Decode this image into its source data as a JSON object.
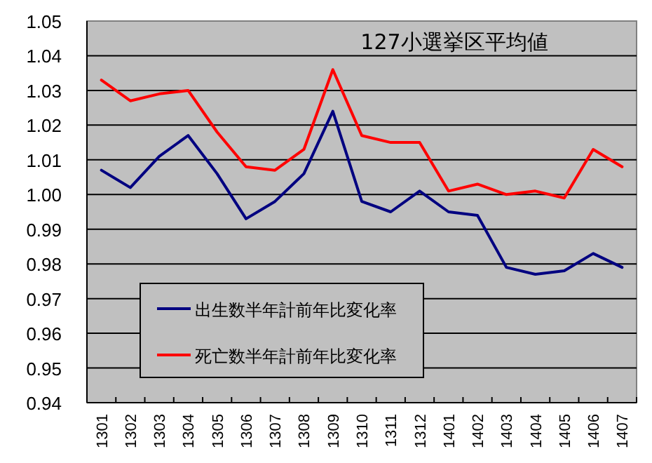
{
  "chart_data": {
    "type": "line",
    "title": "127小選挙区平均値",
    "categories": [
      "1301",
      "1302",
      "1303",
      "1304",
      "1305",
      "1306",
      "1307",
      "1308",
      "1309",
      "1310",
      "1311",
      "1312",
      "1401",
      "1402",
      "1403",
      "1404",
      "1405",
      "1406",
      "1407"
    ],
    "series": [
      {
        "name": "出生数半年計前年比変化率",
        "color": "#000080",
        "values": [
          1.007,
          1.002,
          1.011,
          1.017,
          1.006,
          0.993,
          0.998,
          1.006,
          1.024,
          0.998,
          0.995,
          1.001,
          0.995,
          0.994,
          0.979,
          0.977,
          0.978,
          0.983,
          0.979
        ]
      },
      {
        "name": "死亡数半年計前年比変化率",
        "color": "#ff0000",
        "values": [
          1.033,
          1.027,
          1.029,
          1.03,
          1.018,
          1.008,
          1.007,
          1.013,
          1.036,
          1.017,
          1.015,
          1.015,
          1.001,
          1.003,
          1.0,
          1.001,
          0.999,
          1.013,
          1.008
        ]
      }
    ],
    "ylim": [
      0.94,
      1.05
    ],
    "yticks": [
      {
        "value": 0.94,
        "label": "0.94"
      },
      {
        "value": 0.95,
        "label": "0.95"
      },
      {
        "value": 0.96,
        "label": "0.96"
      },
      {
        "value": 0.97,
        "label": "0.97"
      },
      {
        "value": 0.98,
        "label": "0.98"
      },
      {
        "value": 0.99,
        "label": "0.99"
      },
      {
        "value": 1.0,
        "label": "1.00"
      },
      {
        "value": 1.01,
        "label": "1.01"
      },
      {
        "value": 1.02,
        "label": "1.02"
      },
      {
        "value": 1.03,
        "label": "1.03"
      },
      {
        "value": 1.04,
        "label": "1.04"
      },
      {
        "value": 1.05,
        "label": "1.05"
      }
    ],
    "grid": "y",
    "legend": "bottom left",
    "marker": "none",
    "line_style": "solid"
  }
}
